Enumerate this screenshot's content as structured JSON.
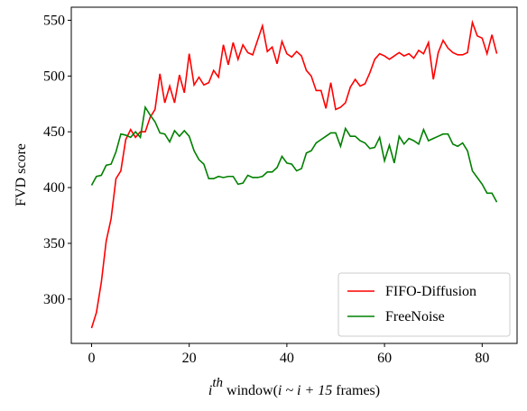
{
  "chart_data": {
    "type": "line",
    "ylabel": "FVD score",
    "xlabel": [
      "i",
      "th",
      " window(",
      "i ~ i + 15",
      " frames)"
    ],
    "x": [
      0,
      1,
      2,
      3,
      4,
      5,
      6,
      7,
      8,
      9,
      10,
      11,
      12,
      13,
      14,
      15,
      16,
      17,
      18,
      19,
      20,
      21,
      22,
      23,
      24,
      25,
      26,
      27,
      28,
      29,
      30,
      31,
      32,
      33,
      34,
      35,
      36,
      37,
      38,
      39,
      40,
      41,
      42,
      43,
      44,
      45,
      46,
      47,
      48,
      49,
      50,
      51,
      52,
      53,
      54,
      55,
      56,
      57,
      58,
      59,
      60,
      61,
      62,
      63,
      64,
      65,
      66,
      67,
      68,
      69,
      70,
      71,
      72,
      73,
      74,
      75,
      76,
      77,
      78,
      79,
      80,
      81,
      82,
      83
    ],
    "series": [
      {
        "name": "FIFO-Diffusion",
        "color": "#ff0000",
        "values": [
          274,
          288,
          315,
          352,
          372,
          408,
          415,
          443,
          452,
          445,
          450,
          450,
          463,
          470,
          502,
          476,
          491,
          476,
          501,
          485,
          520,
          492,
          499,
          492,
          494,
          505,
          499,
          528,
          510,
          530,
          515,
          528,
          521,
          519,
          532,
          545,
          522,
          526,
          511,
          531,
          520,
          517,
          522,
          518,
          505,
          500,
          487,
          487,
          471,
          494,
          470,
          472,
          476,
          490,
          497,
          491,
          493,
          503,
          515,
          520,
          518,
          515,
          518,
          521,
          518,
          520,
          516,
          523,
          520,
          530,
          497,
          521,
          532,
          525,
          521,
          519,
          519,
          521,
          548,
          536,
          534,
          520,
          537,
          520
        ]
      },
      {
        "name": "FreeNoise",
        "color": "#008000",
        "values": [
          402,
          410,
          411,
          420,
          421,
          432,
          448,
          447,
          445,
          450,
          445,
          472,
          465,
          459,
          449,
          448,
          441,
          451,
          446,
          451,
          446,
          433,
          425,
          421,
          408,
          408,
          410,
          409,
          410,
          410,
          403,
          404,
          411,
          409,
          409,
          410,
          414,
          414,
          418,
          428,
          422,
          421,
          415,
          417,
          431,
          433,
          440,
          443,
          446,
          449,
          449,
          437,
          453,
          446,
          446,
          442,
          440,
          435,
          436,
          445,
          424,
          438,
          422,
          446,
          439,
          444,
          442,
          439,
          452,
          442,
          444,
          446,
          448,
          448,
          439,
          437,
          440,
          433,
          415,
          409,
          403,
          395,
          395,
          387
        ]
      }
    ],
    "xlim": [
      -4.15,
      87.15
    ],
    "xticks": [
      0,
      20,
      40,
      60,
      80
    ],
    "ylim": [
      260.3,
      561.7
    ],
    "yticks": [
      300,
      350,
      400,
      450,
      500,
      550
    ],
    "legend": "lower right"
  }
}
